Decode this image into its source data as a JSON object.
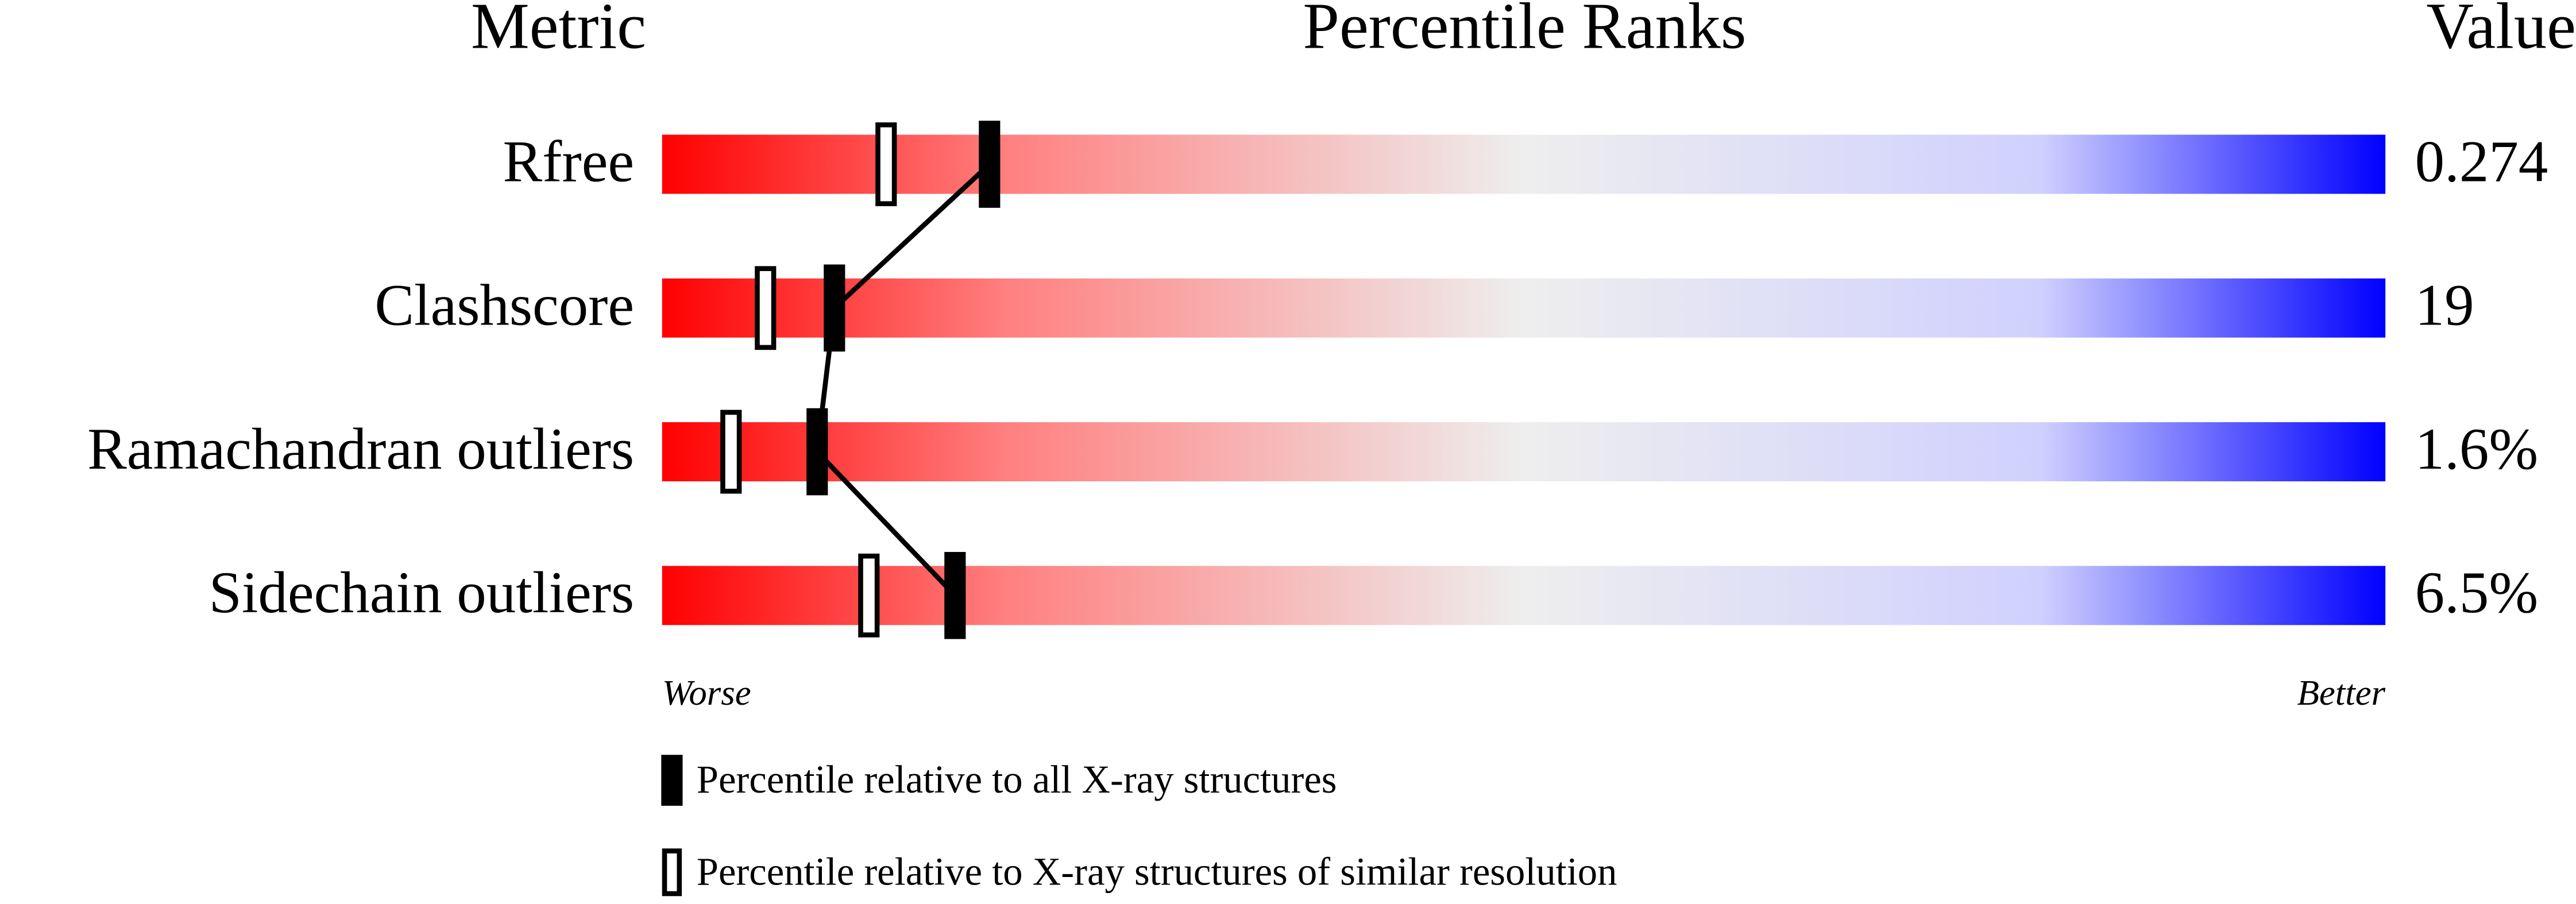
{
  "chart_data": {
    "type": "percentile-slider",
    "header_metric": "Metric",
    "header_ranks": "Percentile Ranks",
    "header_value": "Value",
    "categories": [
      "Rfree",
      "Clashscore",
      "Ramachandran outliers",
      "Sidechain outliers"
    ],
    "metric_values": [
      0.274,
      19,
      {
        "value": 1.6,
        "label": "1.6%"
      },
      {
        "value": 6.5,
        "label": "6.5%"
      }
    ],
    "xlim": [
      0,
      100
    ],
    "worse_label": "Worse",
    "better_label": "Better",
    "series": [
      {
        "name": "Percentile relative to all X-ray structures",
        "color": "#000000",
        "values": [
          19,
          10,
          9,
          17
        ]
      },
      {
        "name": "Percentile relative to X-ray structures of similar resolution",
        "color": "#ffffff",
        "values": [
          13,
          6,
          4,
          12
        ]
      }
    ]
  }
}
